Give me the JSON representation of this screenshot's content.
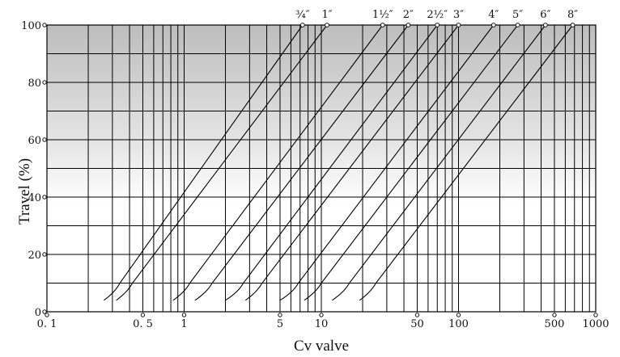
{
  "chart_data": {
    "type": "line",
    "title": "",
    "xlabel": "Cv valve",
    "ylabel": "Travel (%)",
    "x_scale": "log",
    "xlim": [
      0.1,
      1000
    ],
    "ylim": [
      0,
      100
    ],
    "x_ticks": [
      {
        "value": 0.1,
        "label": "0. 1"
      },
      {
        "value": 0.5,
        "label": "0. 5"
      },
      {
        "value": 1,
        "label": "1"
      },
      {
        "value": 5,
        "label": "5"
      },
      {
        "value": 10,
        "label": "10"
      },
      {
        "value": 50,
        "label": "50"
      },
      {
        "value": 100,
        "label": "100"
      },
      {
        "value": 500,
        "label": "500"
      },
      {
        "value": 1000,
        "label": "1000"
      }
    ],
    "y_ticks": [
      {
        "value": 0,
        "label": "0"
      },
      {
        "value": 20,
        "label": "20"
      },
      {
        "value": 40,
        "label": "40"
      },
      {
        "value": 60,
        "label": "60"
      },
      {
        "value": 80,
        "label": "80"
      },
      {
        "value": 100,
        "label": "100"
      }
    ],
    "grid": true,
    "background": "vertical gradient, gray at top fading to white toward the middle",
    "colors": {
      "line": "#000000",
      "grid": "#000000",
      "bg_top": "#bdbdbd",
      "bg_bottom": "#ffffff"
    },
    "series": [
      {
        "size_label": "¾″",
        "x": [
          0.26,
          0.34,
          7.3
        ],
        "y": [
          4,
          10,
          100
        ]
      },
      {
        "size_label": "1″",
        "x": [
          0.32,
          0.42,
          11
        ],
        "y": [
          4,
          10,
          100
        ]
      },
      {
        "size_label": "1½″",
        "x": [
          0.83,
          1.1,
          28
        ],
        "y": [
          4,
          10,
          100
        ]
      },
      {
        "size_label": "2″",
        "x": [
          1.2,
          1.6,
          43
        ],
        "y": [
          4,
          10,
          100
        ]
      },
      {
        "size_label": "2½″",
        "x": [
          2.0,
          2.7,
          70
        ],
        "y": [
          4,
          10,
          100
        ]
      },
      {
        "size_label": "3″",
        "x": [
          2.8,
          3.7,
          100
        ],
        "y": [
          4,
          10,
          100
        ]
      },
      {
        "size_label": "4″",
        "x": [
          5.0,
          6.8,
          180
        ],
        "y": [
          4,
          10,
          100
        ]
      },
      {
        "size_label": "5″",
        "x": [
          7.5,
          10,
          270
        ],
        "y": [
          4,
          10,
          100
        ]
      },
      {
        "size_label": "6″",
        "x": [
          12,
          16,
          430
        ],
        "y": [
          4,
          10,
          100
        ]
      },
      {
        "size_label": "8″",
        "x": [
          19,
          25,
          680
        ],
        "y": [
          4,
          10,
          100
        ]
      }
    ]
  }
}
